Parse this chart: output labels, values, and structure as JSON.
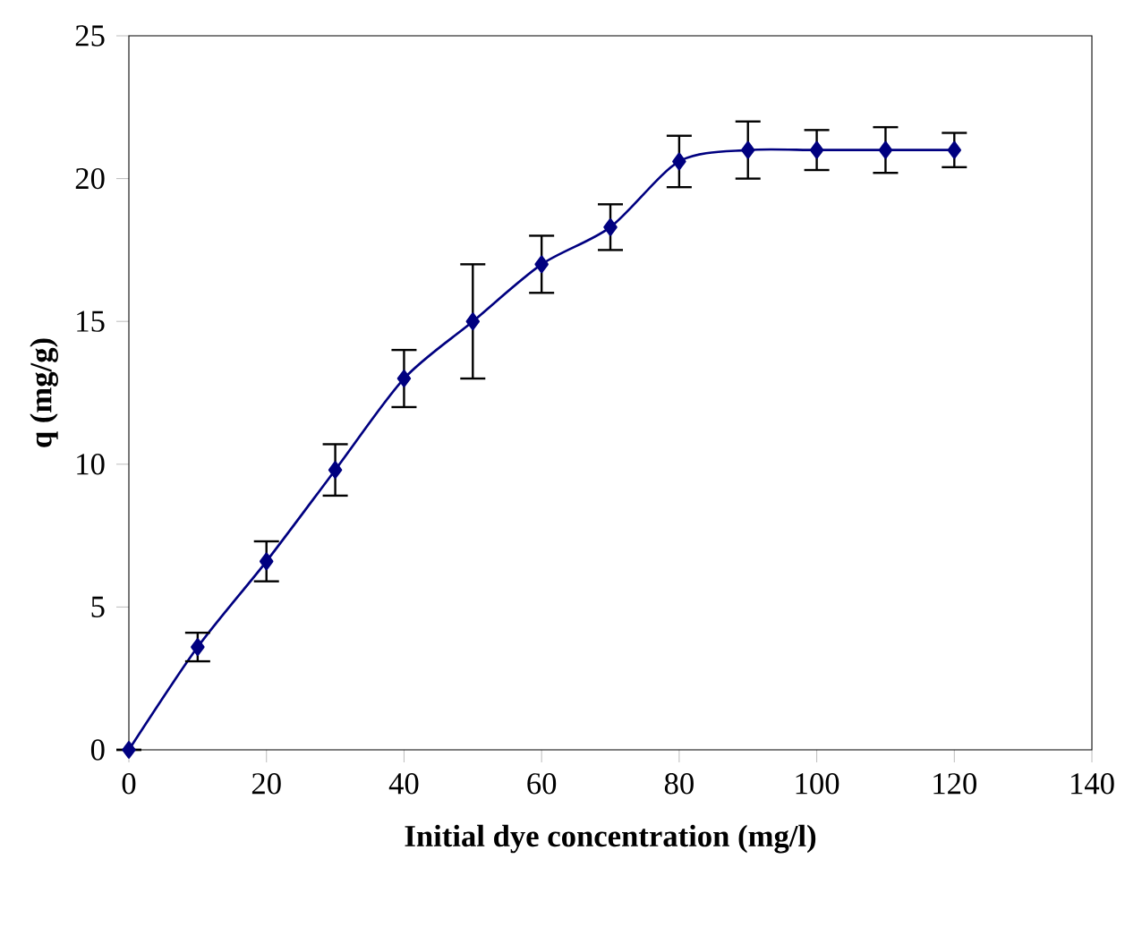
{
  "chart_data": {
    "type": "line",
    "xlabel": "Initial dye concentration (mg/l)",
    "ylabel": "q  (mg/g)",
    "x": [
      0,
      10,
      20,
      30,
      40,
      50,
      60,
      70,
      80,
      90,
      100,
      110,
      120
    ],
    "series": [
      {
        "color": "#000080",
        "values": [
          0,
          3.6,
          6.6,
          9.8,
          13,
          15,
          17,
          18.3,
          20.6,
          21,
          21,
          21,
          21
        ],
        "errors": [
          null,
          0.5,
          0.7,
          0.9,
          1,
          2,
          1,
          0.8,
          0.9,
          1,
          0.7,
          0.8,
          0.6
        ]
      }
    ],
    "xlim": [
      0,
      140
    ],
    "xticks": [
      0,
      20,
      40,
      60,
      80,
      100,
      120,
      140
    ],
    "ylim": [
      0,
      25
    ],
    "yticks": [
      0,
      5,
      10,
      15,
      20,
      25
    ],
    "marker": "diamond",
    "line_style": "solid"
  }
}
